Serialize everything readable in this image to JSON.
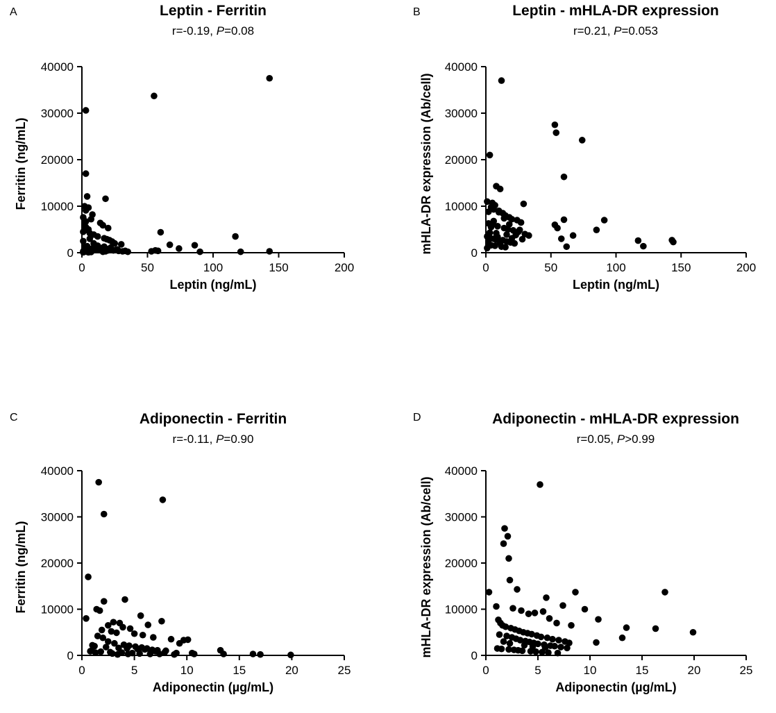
{
  "chart_data": [
    {
      "type": "scatter",
      "panel_label": "A",
      "title": "Leptin - Ferritin",
      "stat_r": "r=-0.19, ",
      "stat_p_symbol": "P",
      "stat_p_value": "=0.08",
      "xlabel": "Leptin (ng/mL)",
      "ylabel": "Ferritin (ng/mL)",
      "xlim": [
        0,
        200
      ],
      "ylim": [
        0,
        40000
      ],
      "xticks": [
        0,
        50,
        100,
        150,
        200
      ],
      "yticks": [
        0,
        10000,
        20000,
        30000,
        40000
      ],
      "x": [
        143,
        55,
        3,
        3,
        4,
        18,
        2,
        5,
        3,
        8,
        1,
        7,
        3,
        14,
        16,
        20,
        5,
        2,
        1,
        6,
        9,
        12,
        17,
        19,
        21,
        23,
        25,
        30,
        10,
        4,
        2,
        3,
        8,
        15,
        13,
        11,
        6,
        2,
        1,
        4,
        5,
        7,
        22,
        27,
        33,
        24,
        18,
        16,
        60,
        117,
        86,
        67,
        74,
        58,
        121,
        143,
        90,
        53,
        56,
        2,
        3,
        1,
        6,
        9,
        12,
        14,
        19,
        26,
        28,
        31,
        35,
        1,
        2,
        4,
        6,
        8,
        10,
        13,
        17,
        20
      ],
      "y": [
        37500,
        33700,
        30600,
        17000,
        12100,
        11600,
        10000,
        9700,
        9100,
        8200,
        7600,
        7200,
        6700,
        6400,
        5900,
        5300,
        5000,
        4800,
        4500,
        4200,
        3900,
        3500,
        3100,
        2900,
        2700,
        2400,
        2000,
        1800,
        1600,
        1400,
        1200,
        1000,
        900,
        800,
        700,
        600,
        500,
        400,
        300,
        200,
        100,
        150,
        1100,
        700,
        400,
        500,
        300,
        200,
        4400,
        3500,
        1600,
        1700,
        900,
        400,
        200,
        300,
        200,
        300,
        500,
        6000,
        5500,
        2500,
        3000,
        2000,
        1500,
        1000,
        800,
        600,
        400,
        300,
        200,
        100,
        200,
        300,
        500,
        700,
        900,
        1100,
        1300,
        500
      ]
    },
    {
      "type": "scatter",
      "panel_label": "B",
      "title": "Leptin - mHLA-DR expression",
      "stat_r": "r=0.21, ",
      "stat_p_symbol": "P",
      "stat_p_value": "=0.053",
      "xlabel": "Leptin (ng/mL)",
      "ylabel": "mHLA-DR expression (Ab/cell)",
      "xlim": [
        0,
        200
      ],
      "ylim": [
        0,
        40000
      ],
      "xticks": [
        0,
        50,
        100,
        150,
        200
      ],
      "yticks": [
        0,
        10000,
        20000,
        30000,
        40000
      ],
      "x": [
        12,
        53,
        54,
        74,
        3,
        60,
        8,
        11,
        29,
        7,
        4,
        6,
        10,
        13,
        15,
        18,
        20,
        24,
        27,
        2,
        5,
        9,
        14,
        17,
        21,
        25,
        30,
        33,
        1,
        3,
        6,
        8,
        11,
        16,
        19,
        22,
        2,
        4,
        7,
        12,
        15,
        23,
        28,
        1,
        5,
        10,
        14,
        18,
        26,
        53,
        55,
        60,
        67,
        85,
        91,
        117,
        121,
        143,
        144,
        58,
        62,
        2,
        3,
        4,
        6,
        9,
        13,
        16,
        20,
        1,
        2,
        5,
        8,
        11
      ],
      "y": [
        37000,
        27500,
        25800,
        24200,
        21000,
        16300,
        14300,
        13700,
        10500,
        10200,
        9800,
        9300,
        9000,
        8500,
        8000,
        7600,
        7200,
        7000,
        6500,
        6300,
        6000,
        5700,
        5300,
        5000,
        4800,
        4500,
        4000,
        3700,
        3500,
        3200,
        3000,
        2800,
        2600,
        2400,
        2200,
        2000,
        1800,
        1600,
        1500,
        1300,
        1200,
        3800,
        2900,
        11000,
        10700,
        8700,
        7400,
        6100,
        4900,
        6000,
        5300,
        7100,
        3700,
        4900,
        7000,
        2600,
        1400,
        2700,
        2300,
        3000,
        1300,
        2500,
        4300,
        5500,
        6800,
        3400,
        2700,
        3900,
        3100,
        1000,
        8800,
        9500,
        4200,
        2100
      ]
    },
    {
      "type": "scatter",
      "panel_label": "C",
      "title": "Adiponectin - Ferritin",
      "stat_r": "r=-0.11, ",
      "stat_p_symbol": "P",
      "stat_p_value": "=0.90",
      "xlabel": "Adiponectin (µg/mL)",
      "ylabel": "Ferritin (ng/mL)",
      "xlim": [
        0,
        25
      ],
      "ylim": [
        0,
        40000
      ],
      "xticks": [
        0,
        5,
        10,
        15,
        20,
        25
      ],
      "yticks": [
        0,
        10000,
        20000,
        30000,
        40000
      ],
      "x": [
        1.6,
        7.7,
        2.1,
        0.6,
        4.1,
        2.1,
        1.4,
        1.7,
        0.4,
        5.6,
        3.0,
        3.6,
        6.3,
        7.6,
        2.5,
        3.9,
        4.6,
        1.9,
        2.8,
        3.3,
        5.0,
        5.8,
        6.8,
        8.5,
        9.7,
        10.1,
        9.3,
        1.0,
        1.2,
        2.3,
        3.5,
        4.3,
        5.3,
        6.0,
        7.2,
        8.0,
        0.8,
        1.8,
        2.7,
        3.8,
        4.8,
        5.5,
        6.5,
        7.4,
        8.8,
        10.5,
        13.2,
        13.5,
        16.3,
        17.0,
        19.9,
        1.5,
        2.0,
        2.5,
        3.1,
        4.0,
        4.5,
        5.1,
        5.7,
        6.2,
        6.7,
        7.0,
        7.9,
        9.0,
        10.7,
        0.9,
        1.3,
        2.9,
        3.4,
        4.4
      ],
      "y": [
        37500,
        33700,
        30600,
        17000,
        12100,
        11700,
        10000,
        9700,
        8000,
        8600,
        7200,
        7000,
        6600,
        7400,
        6500,
        6100,
        5800,
        5500,
        5200,
        4900,
        4700,
        4400,
        3900,
        3500,
        3300,
        3400,
        2600,
        2200,
        2000,
        1800,
        1600,
        1500,
        1400,
        1300,
        1100,
        1000,
        900,
        800,
        700,
        600,
        500,
        400,
        300,
        300,
        200,
        500,
        1100,
        300,
        300,
        200,
        100,
        4200,
        3800,
        3000,
        2600,
        2300,
        2100,
        1900,
        1700,
        1500,
        1200,
        900,
        700,
        500,
        300,
        1000,
        600,
        400,
        200,
        300
      ]
    },
    {
      "type": "scatter",
      "panel_label": "D",
      "title": "Adiponectin - mHLA-DR expression",
      "stat_r": "r=0.05, ",
      "stat_p_symbol": "P",
      "stat_p_value": ">0.99",
      "xlabel": "Adiponectin (µg/mL)",
      "ylabel": "mHLA-DR expression (Ab/cell)",
      "xlim": [
        0,
        25
      ],
      "ylim": [
        0,
        40000
      ],
      "xticks": [
        0,
        5,
        10,
        15,
        20,
        25
      ],
      "yticks": [
        0,
        10000,
        20000,
        30000,
        40000
      ],
      "x": [
        5.2,
        1.8,
        2.1,
        1.7,
        2.2,
        2.3,
        3.0,
        0.3,
        17.2,
        8.6,
        5.8,
        1.0,
        2.6,
        1.2,
        3.4,
        4.1,
        4.7,
        5.5,
        6.1,
        6.8,
        7.4,
        8.2,
        9.5,
        10.8,
        13.5,
        16.3,
        19.9,
        13.1,
        10.6,
        1.4,
        1.6,
        1.9,
        2.4,
        2.8,
        3.2,
        3.6,
        4.0,
        4.4,
        4.9,
        5.3,
        5.9,
        6.4,
        7.0,
        7.6,
        8.0,
        1.3,
        2.0,
        2.5,
        2.9,
        3.3,
        3.8,
        4.2,
        4.6,
        5.0,
        5.6,
        6.2,
        6.6,
        7.2,
        7.8,
        1.1,
        1.5,
        2.2,
        2.7,
        3.1,
        3.5,
        4.3,
        4.8,
        5.4,
        6.0,
        6.9,
        1.7,
        2.3,
        3.7,
        4.5,
        5.7
      ],
      "y": [
        37000,
        27500,
        25800,
        24200,
        21000,
        16300,
        14300,
        13700,
        13700,
        13700,
        12500,
        10600,
        10200,
        7700,
        9700,
        9000,
        9200,
        9500,
        8000,
        7000,
        10800,
        6500,
        10000,
        7800,
        6000,
        5800,
        5000,
        3800,
        2800,
        7000,
        6500,
        6200,
        5900,
        5600,
        5300,
        5000,
        4800,
        4600,
        4300,
        4000,
        3800,
        3500,
        3300,
        3000,
        2700,
        4500,
        4200,
        3900,
        3600,
        3300,
        3100,
        2900,
        2700,
        2500,
        2300,
        2100,
        2000,
        1800,
        1600,
        1500,
        1400,
        1300,
        1200,
        1100,
        1000,
        900,
        800,
        700,
        600,
        500,
        3000,
        2600,
        2200,
        1900,
        1700
      ]
    }
  ]
}
